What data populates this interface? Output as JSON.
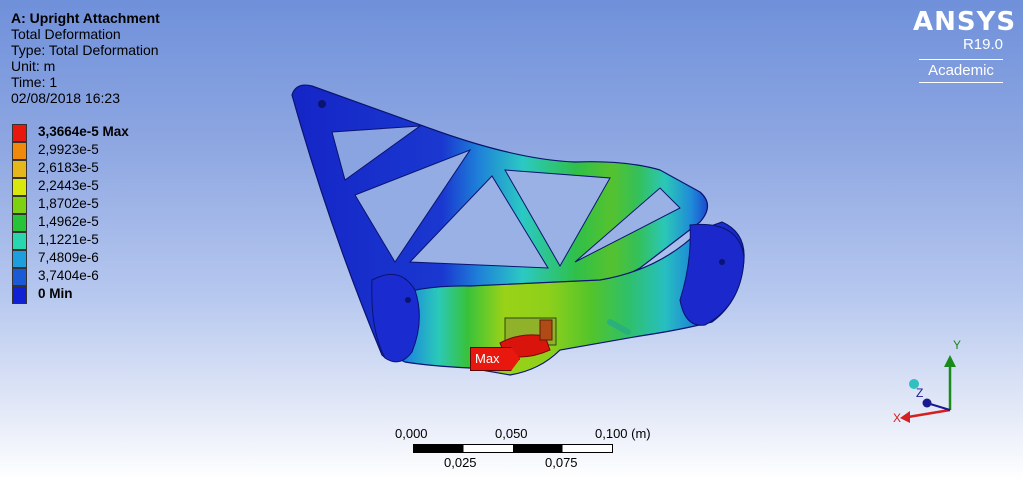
{
  "header": {
    "title": "A: Upright Attachment",
    "result_name": "Total Deformation",
    "type_line": "Type: Total Deformation",
    "unit_line": "Unit: m",
    "time_line": "Time: 1",
    "date_line": "02/08/2018 16:23"
  },
  "legend": {
    "items": [
      {
        "label": "3,3664e-5 Max",
        "color": "#e8180e"
      },
      {
        "label": "2,9923e-5",
        "color": "#f08a0c"
      },
      {
        "label": "2,6183e-5",
        "color": "#e6b71a"
      },
      {
        "label": "2,2443e-5",
        "color": "#d9e80c"
      },
      {
        "label": "1,8702e-5",
        "color": "#7ed111"
      },
      {
        "label": "1,4962e-5",
        "color": "#27c43a"
      },
      {
        "label": "1,1221e-5",
        "color": "#2ad6b0"
      },
      {
        "label": "7,4809e-6",
        "color": "#1d9ede"
      },
      {
        "label": "3,7404e-6",
        "color": "#1a5ad6"
      },
      {
        "label": "0 Min",
        "color": "#1020d4"
      }
    ]
  },
  "logo": {
    "brand": "ANSYS",
    "version": "R19.0",
    "edition": "Academic"
  },
  "probe": {
    "max_label": "Max"
  },
  "scale_bar": {
    "top_labels": [
      "0,000",
      "0,050",
      "0,100 (m)"
    ],
    "bottom_labels": [
      "0,025",
      "0,075"
    ]
  },
  "triad": {
    "x_label": "X",
    "y_label": "Y",
    "z_label": "Z"
  }
}
